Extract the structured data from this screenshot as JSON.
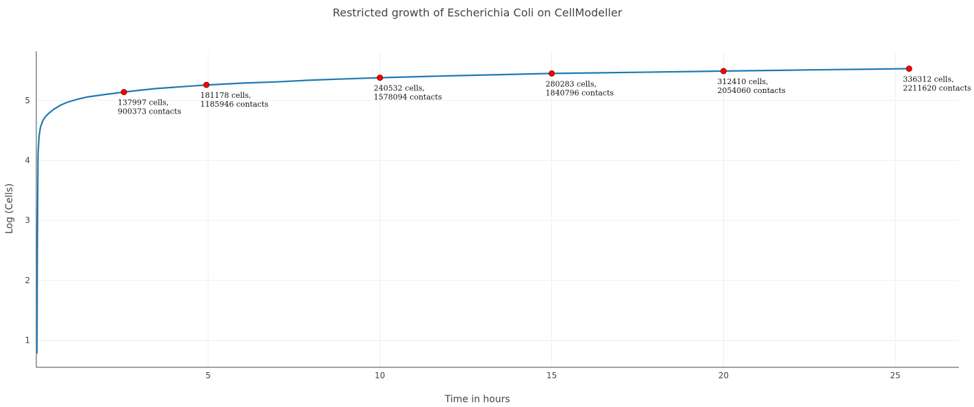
{
  "chart_data": {
    "type": "line",
    "title": "Restricted growth of Escherichia Coli on CellModeller",
    "xlabel": "Time in hours",
    "ylabel": "Log (Cells)",
    "xlim": [
      0,
      26.85
    ],
    "ylim": [
      0.55,
      5.82
    ],
    "xticks": [
      5,
      10,
      15,
      20,
      25
    ],
    "yticks": [
      1,
      2,
      3,
      4,
      5
    ],
    "grid": true,
    "line_color": "#1f77b4",
    "marker_color": "#ff0000",
    "series": [
      {
        "x": [
          0.02,
          0.03,
          0.05,
          0.08,
          0.12,
          0.18,
          0.25,
          0.35,
          0.5,
          0.7,
          0.9,
          1.2,
          1.5,
          2.0,
          2.55,
          3.0,
          3.5,
          4.0,
          4.5,
          5.0,
          6.0,
          7.0,
          8.0,
          9.0,
          10.0,
          12.0,
          15.0,
          17.5,
          20.0,
          22.5,
          25.4
        ],
        "y": [
          0.78,
          2.5,
          4.1,
          4.4,
          4.55,
          4.65,
          4.72,
          4.78,
          4.85,
          4.92,
          4.97,
          5.02,
          5.06,
          5.1,
          5.14,
          5.17,
          5.2,
          5.22,
          5.24,
          5.26,
          5.29,
          5.31,
          5.34,
          5.36,
          5.38,
          5.41,
          5.45,
          5.47,
          5.49,
          5.51,
          5.53
        ]
      }
    ],
    "markers": [
      {
        "x": 2.55,
        "y": 5.14,
        "label_line1": "137997 cells,",
        "label_line2": "900373 contacts"
      },
      {
        "x": 4.95,
        "y": 5.26,
        "label_line1": "181178 cells,",
        "label_line2": "1185946 contacts"
      },
      {
        "x": 10.0,
        "y": 5.38,
        "label_line1": "240532 cells,",
        "label_line2": "1578094 contacts"
      },
      {
        "x": 15.0,
        "y": 5.45,
        "label_line1": "280283 cells,",
        "label_line2": "1840796 contacts"
      },
      {
        "x": 20.0,
        "y": 5.49,
        "label_line1": "312410 cells,",
        "label_line2": "2054060 contacts"
      },
      {
        "x": 25.4,
        "y": 5.53,
        "label_line1": "336312 cells,",
        "label_line2": "2211620 contacts"
      }
    ]
  }
}
